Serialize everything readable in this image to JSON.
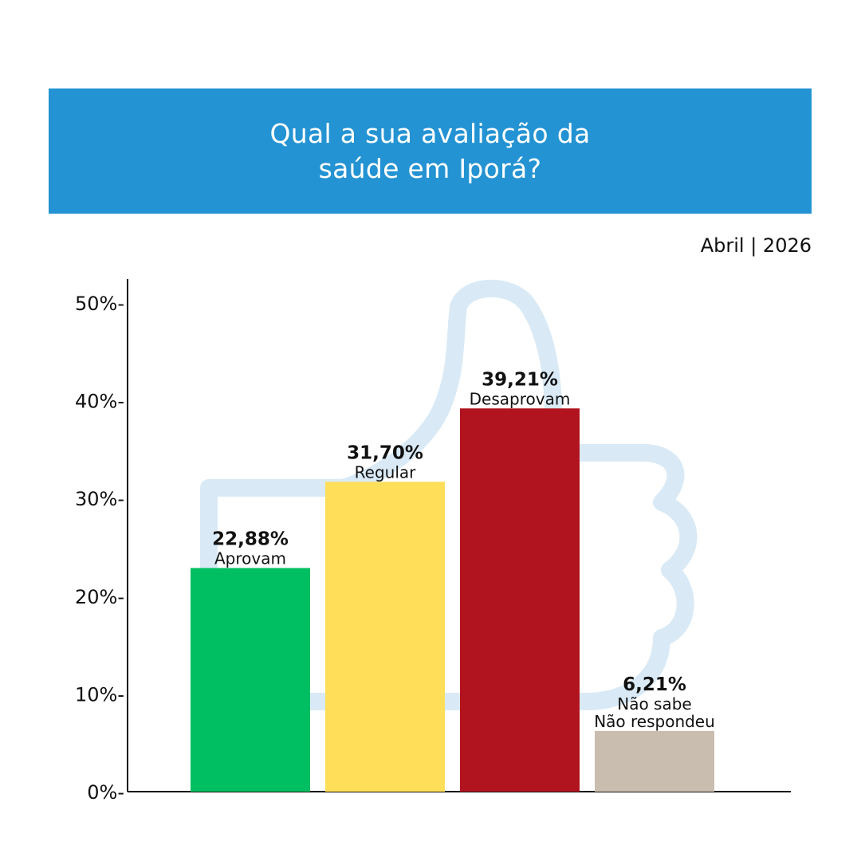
{
  "header": {
    "title": "Qual a sua avaliação da\nsaúde em Iporá?",
    "background_color": "#2393d3"
  },
  "date_label": "Abril | 2026",
  "watermark_icon": "thumbs-up-icon",
  "chart_data": {
    "type": "bar",
    "title": "Qual a sua avaliação da saúde em Iporá?",
    "ylim": [
      0,
      50
    ],
    "yticks": [
      "0%-",
      "10%-",
      "20%-",
      "30%-",
      "40%-",
      "50%-"
    ],
    "grid": false,
    "categories": [
      {
        "value": 22.88,
        "value_label": "22,88%",
        "label_lines": [
          "Aprovam"
        ],
        "color": "#00bf63"
      },
      {
        "value": 31.7,
        "value_label": "31,70%",
        "label_lines": [
          "Regular"
        ],
        "color": "#ffde59"
      },
      {
        "value": 39.21,
        "value_label": "39,21%",
        "label_lines": [
          "Desaprovam"
        ],
        "color": "#b1141e"
      },
      {
        "value": 6.21,
        "value_label": "6,21%",
        "label_lines": [
          "Não sabe",
          "Não respondeu"
        ],
        "color": "#c9bdb0"
      }
    ]
  }
}
